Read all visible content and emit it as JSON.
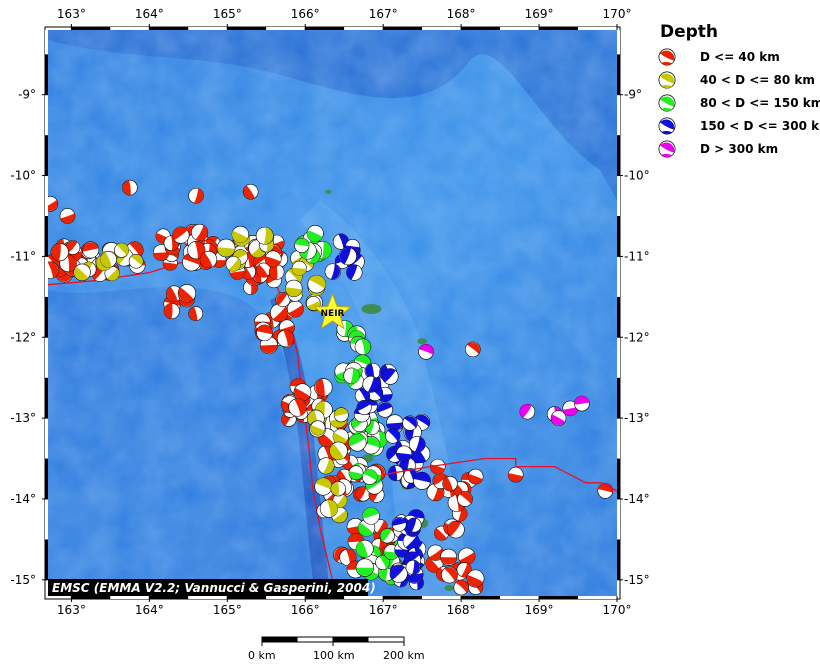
{
  "map": {
    "lon_min": 162.7,
    "lon_max": 170.0,
    "lat_min": -15.2,
    "lat_max": -8.2,
    "lon_ticks": [
      {
        "value": 163,
        "label": "163°"
      },
      {
        "value": 164,
        "label": "164°"
      },
      {
        "value": 165,
        "label": "165°"
      },
      {
        "value": 166,
        "label": "166°"
      },
      {
        "value": 167,
        "label": "167°"
      },
      {
        "value": 168,
        "label": "168°"
      },
      {
        "value": 169,
        "label": "169°"
      },
      {
        "value": 170,
        "label": "170°"
      }
    ],
    "lat_ticks": [
      {
        "value": -9,
        "label": "-9°"
      },
      {
        "value": -10,
        "label": "-10°"
      },
      {
        "value": -11,
        "label": "-11°"
      },
      {
        "value": -12,
        "label": "-12°"
      },
      {
        "value": -13,
        "label": "-13°"
      },
      {
        "value": -14,
        "label": "-14°"
      },
      {
        "value": -15,
        "label": "-15°"
      }
    ],
    "credit": "EMSC (EMMA V2.2; Vannucci & Gasperini, 2004)",
    "station": {
      "label": "NEIR",
      "lon": 166.35,
      "lat": -11.7
    }
  },
  "legend": {
    "title": "Depth",
    "items": [
      {
        "label": "D <= 40 km",
        "color": "#ee2200"
      },
      {
        "label": "40 < D <= 80 km",
        "color": "#c8c800"
      },
      {
        "label": "80 < D <= 150 km",
        "color": "#22ee22"
      },
      {
        "label": "150 < D <= 300 km",
        "color": "#1010dd"
      },
      {
        "label": "D > 300 km",
        "color": "#ee00ee"
      }
    ]
  },
  "scale_bar": {
    "labels": [
      "0 km",
      "100 km",
      "200 km"
    ]
  }
}
